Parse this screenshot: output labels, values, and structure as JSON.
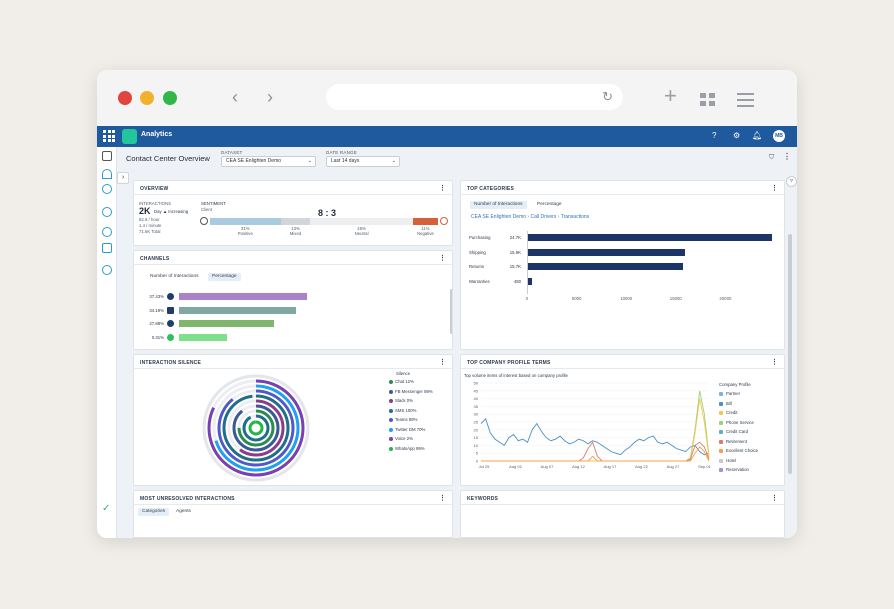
{
  "app": {
    "name": "Analytics",
    "page_title": "Contact Center Overview",
    "user_initials": "MB"
  },
  "filters": {
    "dataset_label": "DATASET",
    "dataset_value": "CEA SE Enlighten Demo",
    "date_label": "DATE RANGE",
    "date_value": "Last 14 days"
  },
  "overview": {
    "title": "OVERVIEW",
    "interactions_label": "INTERACTIONS",
    "interactions_value": "2K",
    "trend": "Day ▲ Increasing",
    "rate_hour": "82.8 / hour",
    "rate_minute": "1.4 / minute",
    "total": "71.6K Total",
    "sentiment_label": "SENTIMENT",
    "sentiment_sub": "Client",
    "ratio": "8 : 3",
    "segments": [
      {
        "pct": 31,
        "label": "Positive",
        "color": "#a9cbe0"
      },
      {
        "pct": 13,
        "label": "Mixed",
        "color": "#d2d5d9"
      },
      {
        "pct": 45,
        "label": "Neutral",
        "color": "#eceef0"
      },
      {
        "pct": 11,
        "label": "Negative",
        "color": "#d5613c"
      }
    ],
    "segment_pct_labels": [
      "31%",
      "13%",
      "45%",
      "11%"
    ]
  },
  "channels": {
    "title": "CHANNELS",
    "tabs": [
      "Number of Interactions",
      "Percentage"
    ],
    "active_tab": 1,
    "rows": [
      {
        "label": "37.43%",
        "value": 37.43,
        "icon": "phone-icon",
        "color": "#a982c9"
      },
      {
        "label": "34.19%",
        "value": 34.19,
        "icon": "email-icon",
        "color": "#7fa8a3"
      },
      {
        "label": "27.88%",
        "value": 27.88,
        "icon": "chat-icon",
        "color": "#7fb56d"
      },
      {
        "label": "0.31%",
        "value": 0.31,
        "icon": "whatsapp-icon",
        "color": "#7fe08c"
      }
    ]
  },
  "top_categories": {
    "title": "TOP CATEGORIES",
    "tabs": [
      "Number of Interactions",
      "Percentage"
    ],
    "active_tab": 0,
    "breadcrumb": [
      "CEA SE Enlighten Demo",
      "Call Drivers",
      "Transactions"
    ],
    "breadcrumb_sep": "›",
    "accent": "#1d3566",
    "categories": [
      "Purchasing",
      "Shipping",
      "Returns",
      "Warranties"
    ],
    "value_labels": [
      "24.7K",
      "15.9K",
      "15.7K",
      "480"
    ],
    "x_ticks": [
      "0",
      "5000",
      "10000",
      "15000",
      "20000"
    ]
  },
  "interaction_silence": {
    "title": "INTERACTION SILENCE",
    "legend_header": "Silence",
    "legend": [
      {
        "label": "Chat 12%",
        "color": "#2b8c4b"
      },
      {
        "label": "FB Messenger 89%",
        "color": "#3b5998"
      },
      {
        "label": "Slack 0%",
        "color": "#8b3d8b"
      },
      {
        "label": "SMS 100%",
        "color": "#1f6f8b"
      },
      {
        "label": "Teams 89%",
        "color": "#5059c9"
      },
      {
        "label": "Twitter DM 70%",
        "color": "#1da1f2"
      },
      {
        "label": "Voice 2%",
        "color": "#7a3fb0"
      },
      {
        "label": "WhatsApp 99%",
        "color": "#25b44a"
      }
    ]
  },
  "profile_terms": {
    "title": "TOP COMPANY PROFILE TERMS",
    "subtitle": "Top volume items of interest based on company profile",
    "y_ticks": [
      "50",
      "45",
      "40",
      "35",
      "30",
      "25",
      "20",
      "15",
      "10",
      "5",
      "0"
    ],
    "x_ticks": [
      "Jul 29",
      "Aug 02",
      "Aug 07",
      "Aug 12",
      "Aug 17",
      "Aug 22",
      "Aug 27",
      "Sep 01"
    ],
    "legend_header": "Company Profile",
    "legend": [
      {
        "label": "Partner",
        "color": "#7bb4e3"
      },
      {
        "label": "Bill",
        "color": "#4a90c9"
      },
      {
        "label": "Credit",
        "color": "#f2c94c"
      },
      {
        "label": "Phone Service",
        "color": "#9ad17c"
      },
      {
        "label": "Credit Card",
        "color": "#57b8b0"
      },
      {
        "label": "Retirement",
        "color": "#e07a6a"
      },
      {
        "label": "Excellent Choice",
        "color": "#f6a04d"
      },
      {
        "label": "Hotel",
        "color": "#c9c9c9"
      },
      {
        "label": "Reservation",
        "color": "#a98fd6"
      }
    ]
  },
  "unresolved": {
    "title": "MOST UNRESOLVED INTERACTIONS",
    "tabs": [
      "Categories",
      "Agents"
    ],
    "active_tab": 0
  },
  "keywords": {
    "title": "KEYWORDS"
  }
}
